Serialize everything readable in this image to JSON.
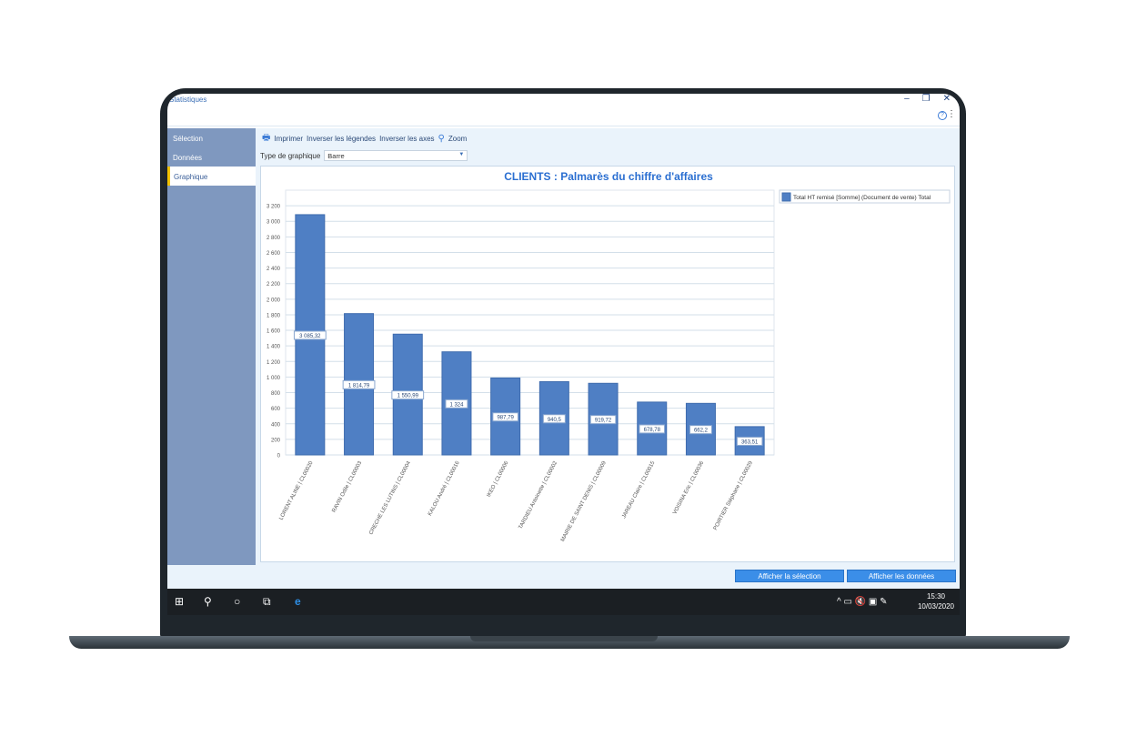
{
  "window": {
    "title": "Statistiques",
    "minimize": "–",
    "restore": "❐",
    "close": "✕",
    "help": "?",
    "more": "⋮"
  },
  "sidebar": {
    "items": [
      {
        "label": "Sélection"
      },
      {
        "label": "Données"
      },
      {
        "label": "Graphique",
        "active": true
      }
    ]
  },
  "toolbar": {
    "print": "Imprimer",
    "invert_legends": "Inverser les légendes",
    "invert_axes": "Inverser les axes",
    "zoom": "Zoom"
  },
  "chart_type": {
    "label": "Type de graphique",
    "value": "Barre"
  },
  "buttons": {
    "show_selection": "Afficher la sélection",
    "show_data": "Afficher les données"
  },
  "taskbar": {
    "time": "15:30",
    "date": "10/03/2020"
  },
  "colors": {
    "bar": "#4f7fc4",
    "accent": "#3b8ee8",
    "title": "#2b6fd1"
  },
  "chart_data": {
    "type": "bar",
    "title": "CLIENTS : Palmarès du chiffre d'affaires",
    "xlabel": "",
    "ylabel": "",
    "ylim": [
      0,
      3400
    ],
    "grid": true,
    "legend_placement": "top-right",
    "yticks": [
      "0",
      "200",
      "400",
      "600",
      "800",
      "1 000",
      "1 200",
      "1 400",
      "1 600",
      "1 800",
      "2 000",
      "2 200",
      "2 400",
      "2 600",
      "2 800",
      "3 000",
      "3 200"
    ],
    "categories": [
      "LORENT ALINE | CL00020",
      "RAVIN Odile | CL00003",
      "CRECHE LES LUTINS | CL00004",
      "KALOU André | CL00016",
      "IKEO | CL00006",
      "TARDIEU Antoinette | CL00002",
      "MAIRIE DE SAINT DENIS | CL00009",
      "JAREAU Claire | CL00015",
      "VOISINA Eric | CL00036",
      "POIRTIER Stéphane | CL00029"
    ],
    "series": [
      {
        "name": "Total HT remisé [Somme] (Document de vente) Total",
        "values": [
          3085.32,
          1814.79,
          1550.99,
          1324,
          987.79,
          940.5,
          919.72,
          678.78,
          662.2,
          363.51
        ],
        "labels": [
          "3 085,32",
          "1 814,79",
          "1 550,99",
          "1 324",
          "987,79",
          "940,5",
          "919,72",
          "678,78",
          "662,2",
          "363,51"
        ]
      }
    ]
  }
}
